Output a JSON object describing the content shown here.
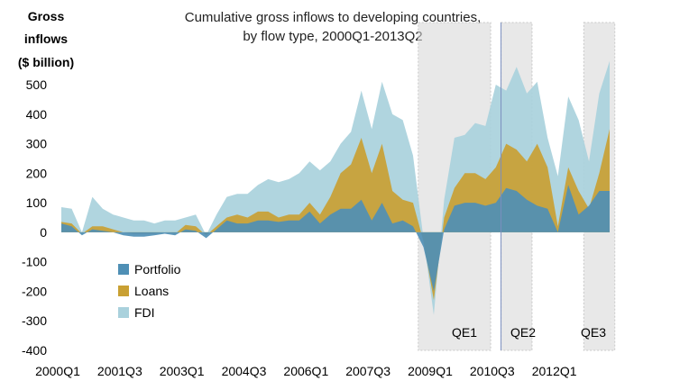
{
  "chart_data": {
    "type": "area",
    "title_line1": "Cumulative gross inflows to developing countries,",
    "title_line2": "by flow type, 2000Q1-2013Q2",
    "ylabel_lines": [
      "Gross",
      "inflows",
      "($ billion)"
    ],
    "ylim": [
      -400,
      500
    ],
    "y_ticks": [
      500,
      400,
      300,
      200,
      100,
      0,
      -100,
      -200,
      -300,
      -400
    ],
    "x_ticks": [
      "2000Q1",
      "2001Q3",
      "2003Q1",
      "2004Q3",
      "2006Q1",
      "2007Q3",
      "2009Q1",
      "2010Q3",
      "2012Q1"
    ],
    "x": [
      "2000Q1",
      "2000Q2",
      "2000Q3",
      "2000Q4",
      "2001Q1",
      "2001Q2",
      "2001Q3",
      "2001Q4",
      "2002Q1",
      "2002Q2",
      "2002Q3",
      "2002Q4",
      "2003Q1",
      "2003Q2",
      "2003Q3",
      "2003Q4",
      "2004Q1",
      "2004Q2",
      "2004Q3",
      "2004Q4",
      "2005Q1",
      "2005Q2",
      "2005Q3",
      "2005Q4",
      "2006Q1",
      "2006Q2",
      "2006Q3",
      "2006Q4",
      "2007Q1",
      "2007Q2",
      "2007Q3",
      "2007Q4",
      "2008Q1",
      "2008Q2",
      "2008Q3",
      "2008Q4",
      "2009Q1",
      "2009Q2",
      "2009Q3",
      "2009Q4",
      "2010Q1",
      "2010Q2",
      "2010Q3",
      "2010Q4",
      "2011Q1",
      "2011Q2",
      "2011Q3",
      "2011Q4",
      "2012Q1",
      "2012Q2",
      "2012Q3",
      "2012Q4",
      "2013Q1",
      "2013Q2"
    ],
    "series": [
      {
        "name": "Portfolio",
        "color": "#4f8fb5",
        "values": [
          30,
          20,
          -10,
          10,
          5,
          0,
          -10,
          -15,
          -15,
          -10,
          -5,
          -10,
          10,
          5,
          -20,
          10,
          40,
          30,
          30,
          40,
          40,
          35,
          40,
          40,
          70,
          30,
          60,
          80,
          80,
          110,
          40,
          100,
          30,
          40,
          20,
          -50,
          -200,
          10,
          90,
          100,
          100,
          90,
          100,
          150,
          140,
          110,
          90,
          80,
          0,
          160,
          60,
          90,
          140,
          140
        ]
      },
      {
        "name": "Loans",
        "color": "#c9a033",
        "values": [
          35,
          30,
          -5,
          20,
          20,
          10,
          0,
          -5,
          -5,
          -5,
          0,
          -5,
          25,
          20,
          -10,
          20,
          50,
          60,
          50,
          70,
          70,
          50,
          60,
          60,
          100,
          60,
          120,
          200,
          230,
          320,
          200,
          300,
          140,
          110,
          100,
          -30,
          -230,
          50,
          150,
          200,
          200,
          180,
          220,
          300,
          280,
          240,
          300,
          220,
          20,
          220,
          140,
          80,
          200,
          350
        ]
      },
      {
        "name": "FDI",
        "color": "#a9d1dc",
        "values": [
          85,
          80,
          0,
          120,
          80,
          60,
          50,
          40,
          40,
          30,
          40,
          40,
          50,
          60,
          -10,
          60,
          120,
          130,
          130,
          160,
          180,
          170,
          180,
          200,
          240,
          210,
          240,
          300,
          340,
          480,
          350,
          510,
          400,
          380,
          260,
          -20,
          -280,
          110,
          320,
          330,
          370,
          360,
          500,
          480,
          560,
          470,
          510,
          320,
          190,
          460,
          380,
          240,
          470,
          580
        ]
      }
    ],
    "shaded_periods": [
      {
        "label": "QE1",
        "start": "2008Q4",
        "end": "2010Q2"
      },
      {
        "label": "QE2",
        "start": "2010Q4",
        "end": "2011Q2"
      },
      {
        "label": "QE3",
        "start": "2012Q4",
        "end": "2013Q2"
      }
    ],
    "vertical_line_at": "2010Q4",
    "legend": {
      "position": "bottom-left",
      "items": [
        "Portfolio",
        "Loans",
        "FDI"
      ]
    },
    "grid": false
  }
}
